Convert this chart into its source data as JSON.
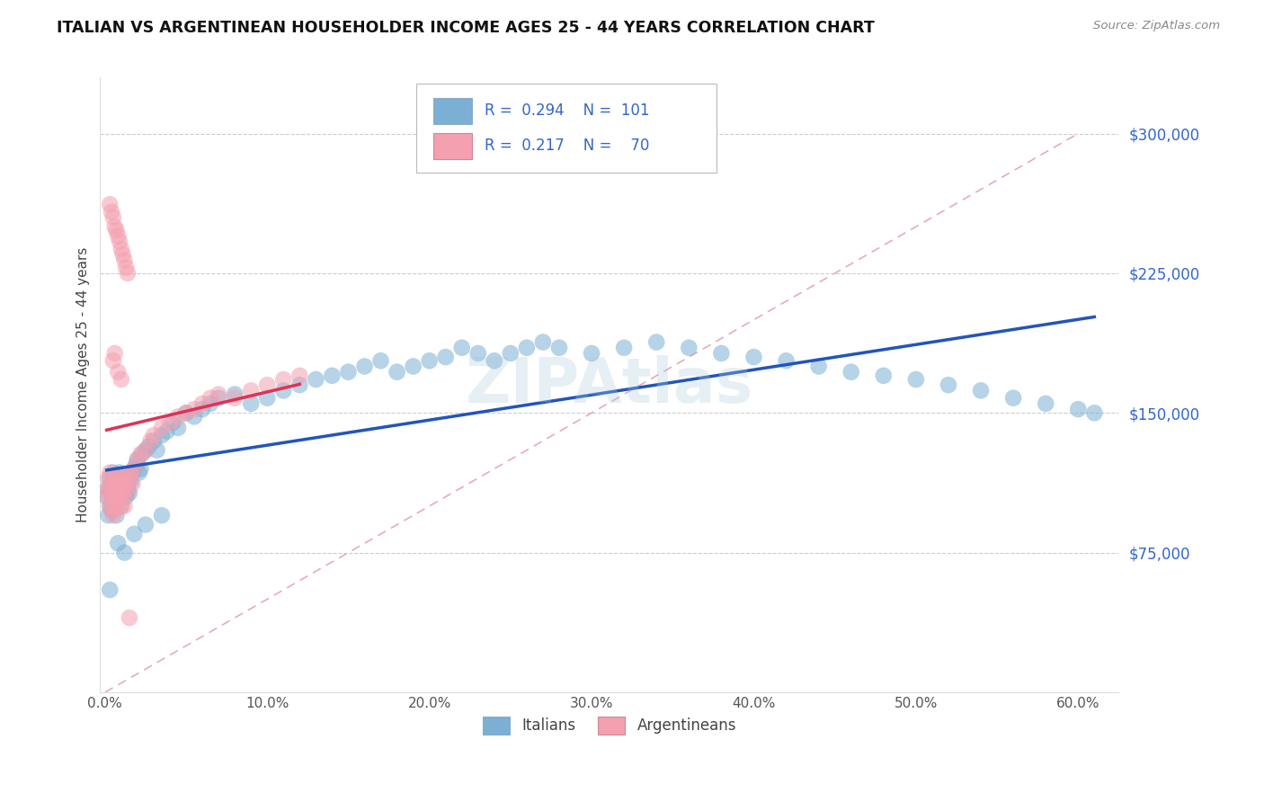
{
  "title": "ITALIAN VS ARGENTINEAN HOUSEHOLDER INCOME AGES 25 - 44 YEARS CORRELATION CHART",
  "source": "Source: ZipAtlas.com",
  "ylabel": "Householder Income Ages 25 - 44 years",
  "watermark": "ZIPAtlas",
  "legend_italian_R": "0.294",
  "legend_italian_N": "101",
  "legend_argent_R": "0.217",
  "legend_argent_N": "70",
  "italian_color": "#7BAFD4",
  "argent_color": "#F4A0B0",
  "italian_line_color": "#2255BB",
  "argent_line_color": "#DD3355",
  "diagonal_color": "#DDBBCC",
  "xlim": [
    -0.003,
    0.625
  ],
  "ylim": [
    0,
    330000
  ],
  "xticks": [
    0.0,
    0.1,
    0.2,
    0.3,
    0.4,
    0.5,
    0.6
  ],
  "xticklabels": [
    "0.0%",
    "10.0%",
    "20.0%",
    "30.0%",
    "40.0%",
    "50.0%",
    "60.0%"
  ],
  "yticks": [
    75000,
    150000,
    225000,
    300000
  ],
  "yticklabels": [
    "$75,000",
    "$150,000",
    "$225,000",
    "$300,000"
  ],
  "italian_x": [
    0.001,
    0.002,
    0.002,
    0.003,
    0.003,
    0.003,
    0.004,
    0.004,
    0.004,
    0.005,
    0.005,
    0.005,
    0.006,
    0.006,
    0.006,
    0.007,
    0.007,
    0.007,
    0.008,
    0.008,
    0.008,
    0.009,
    0.009,
    0.01,
    0.01,
    0.01,
    0.011,
    0.011,
    0.012,
    0.012,
    0.013,
    0.013,
    0.014,
    0.014,
    0.015,
    0.015,
    0.016,
    0.017,
    0.018,
    0.019,
    0.02,
    0.021,
    0.022,
    0.023,
    0.025,
    0.027,
    0.03,
    0.032,
    0.035,
    0.038,
    0.042,
    0.045,
    0.05,
    0.055,
    0.06,
    0.065,
    0.07,
    0.08,
    0.09,
    0.1,
    0.11,
    0.12,
    0.13,
    0.14,
    0.15,
    0.16,
    0.17,
    0.18,
    0.19,
    0.2,
    0.21,
    0.22,
    0.23,
    0.24,
    0.25,
    0.26,
    0.27,
    0.28,
    0.3,
    0.32,
    0.34,
    0.36,
    0.38,
    0.4,
    0.42,
    0.44,
    0.46,
    0.48,
    0.5,
    0.52,
    0.54,
    0.56,
    0.58,
    0.6,
    0.61,
    0.008,
    0.012,
    0.018,
    0.025,
    0.035,
    0.003
  ],
  "italian_y": [
    105000,
    95000,
    110000,
    108000,
    100000,
    115000,
    107000,
    112000,
    98000,
    105000,
    110000,
    118000,
    108000,
    115000,
    100000,
    112000,
    107000,
    95000,
    115000,
    108000,
    103000,
    110000,
    118000,
    106000,
    112000,
    100000,
    108000,
    115000,
    107000,
    113000,
    110000,
    105000,
    112000,
    108000,
    115000,
    107000,
    113000,
    118000,
    120000,
    122000,
    125000,
    118000,
    120000,
    128000,
    130000,
    132000,
    135000,
    130000,
    138000,
    140000,
    145000,
    142000,
    150000,
    148000,
    152000,
    155000,
    158000,
    160000,
    155000,
    158000,
    162000,
    165000,
    168000,
    170000,
    172000,
    175000,
    178000,
    172000,
    175000,
    178000,
    180000,
    185000,
    182000,
    178000,
    182000,
    185000,
    188000,
    185000,
    182000,
    185000,
    188000,
    185000,
    182000,
    180000,
    178000,
    175000,
    172000,
    170000,
    168000,
    165000,
    162000,
    158000,
    155000,
    152000,
    150000,
    80000,
    75000,
    85000,
    90000,
    95000,
    55000
  ],
  "argent_x": [
    0.001,
    0.002,
    0.002,
    0.003,
    0.003,
    0.003,
    0.004,
    0.004,
    0.004,
    0.005,
    0.005,
    0.005,
    0.006,
    0.006,
    0.006,
    0.007,
    0.007,
    0.007,
    0.008,
    0.008,
    0.009,
    0.009,
    0.01,
    0.01,
    0.01,
    0.011,
    0.011,
    0.012,
    0.012,
    0.013,
    0.014,
    0.015,
    0.016,
    0.017,
    0.018,
    0.02,
    0.022,
    0.025,
    0.028,
    0.03,
    0.035,
    0.04,
    0.045,
    0.05,
    0.055,
    0.06,
    0.065,
    0.07,
    0.08,
    0.09,
    0.1,
    0.11,
    0.12,
    0.003,
    0.004,
    0.005,
    0.006,
    0.007,
    0.008,
    0.009,
    0.01,
    0.011,
    0.012,
    0.013,
    0.014,
    0.005,
    0.006,
    0.008,
    0.01,
    0.015
  ],
  "argent_y": [
    108000,
    105000,
    115000,
    110000,
    100000,
    118000,
    108000,
    112000,
    98000,
    105000,
    115000,
    95000,
    108000,
    100000,
    112000,
    105000,
    115000,
    98000,
    108000,
    112000,
    105000,
    115000,
    108000,
    100000,
    112000,
    105000,
    115000,
    108000,
    100000,
    112000,
    108000,
    115000,
    118000,
    112000,
    120000,
    125000,
    128000,
    130000,
    135000,
    138000,
    142000,
    145000,
    148000,
    150000,
    152000,
    155000,
    158000,
    160000,
    158000,
    162000,
    165000,
    168000,
    170000,
    262000,
    258000,
    255000,
    250000,
    248000,
    245000,
    242000,
    238000,
    235000,
    232000,
    228000,
    225000,
    178000,
    182000,
    172000,
    168000,
    40000
  ]
}
